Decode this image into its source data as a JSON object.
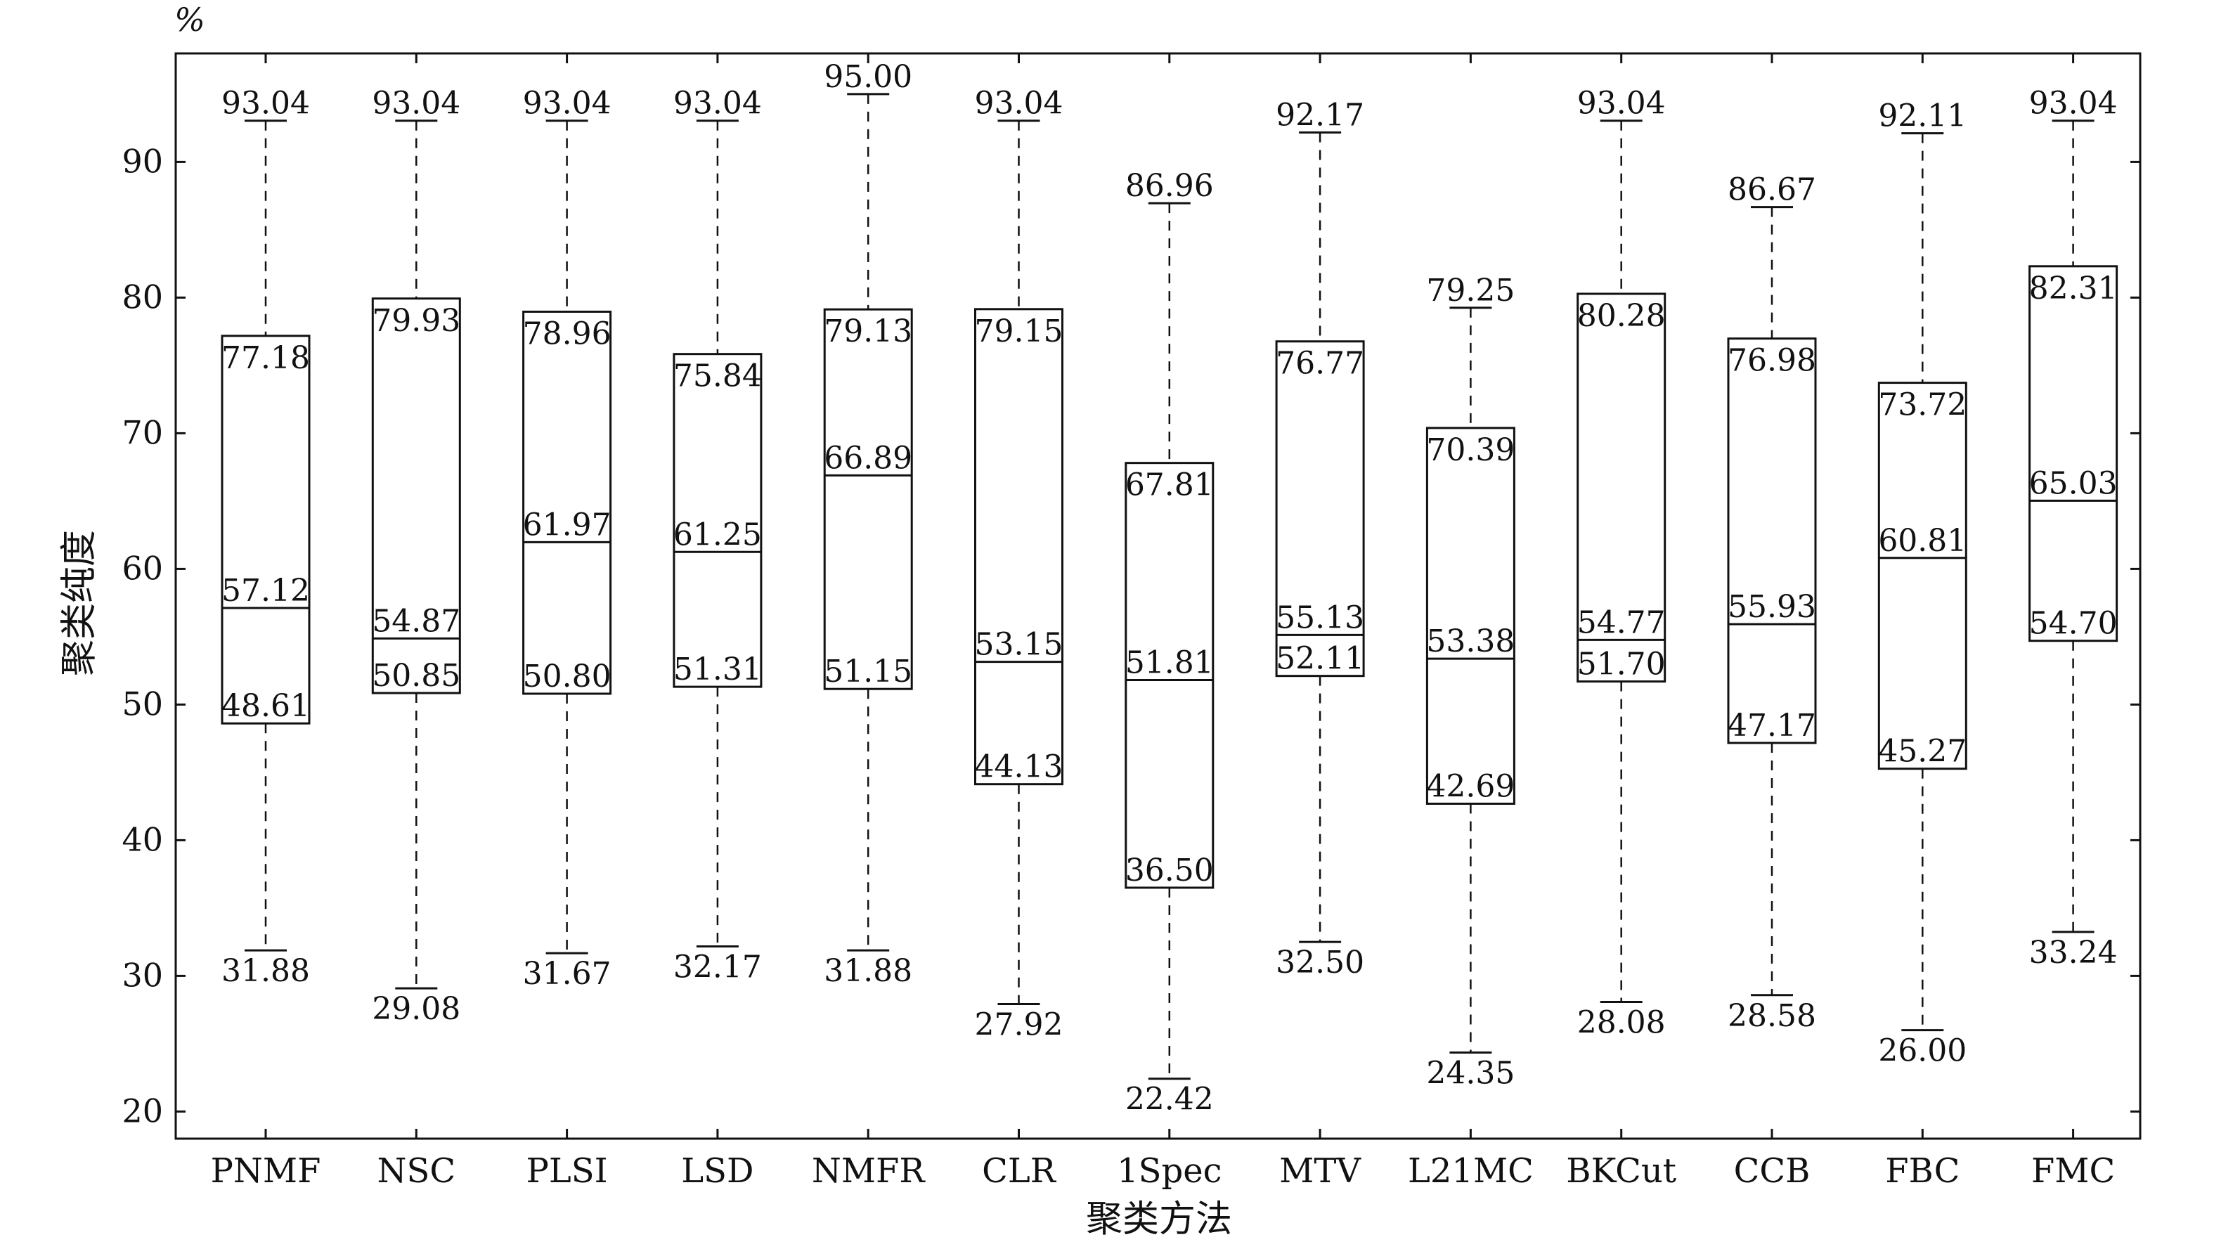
{
  "chart_data": {
    "type": "box",
    "xlabel": "聚类方法",
    "ylabel": "聚类纯度",
    "yunit": "%",
    "ylim": [
      18,
      98
    ],
    "yticks": [
      20,
      30,
      40,
      50,
      60,
      70,
      80,
      90
    ],
    "grid": false,
    "categories": [
      "PNMF",
      "NSC",
      "PLSI",
      "LSD",
      "NMFR",
      "CLR",
      "1Spec",
      "MTV",
      "L21MC",
      "BKCut",
      "CCB",
      "FBC",
      "FMC"
    ],
    "boxes": [
      {
        "name": "PNMF",
        "min": 31.88,
        "q1": 48.61,
        "median": 57.12,
        "q3": 77.18,
        "max": 93.04
      },
      {
        "name": "NSC",
        "min": 29.08,
        "q1": 50.85,
        "median": 54.87,
        "q3": 79.93,
        "max": 93.04
      },
      {
        "name": "PLSI",
        "min": 31.67,
        "q1": 50.8,
        "median": 61.97,
        "q3": 78.96,
        "max": 93.04
      },
      {
        "name": "LSD",
        "min": 32.17,
        "q1": 51.31,
        "median": 61.25,
        "q3": 75.84,
        "max": 93.04
      },
      {
        "name": "NMFR",
        "min": 31.88,
        "q1": 51.15,
        "median": 66.89,
        "q3": 79.13,
        "max": 95.0
      },
      {
        "name": "CLR",
        "min": 27.92,
        "q1": 44.13,
        "median": 53.15,
        "q3": 79.15,
        "max": 93.04
      },
      {
        "name": "1Spec",
        "min": 22.42,
        "q1": 36.5,
        "median": 51.81,
        "q3": 67.81,
        "max": 86.96
      },
      {
        "name": "MTV",
        "min": 32.5,
        "q1": 52.11,
        "median": 55.13,
        "q3": 76.77,
        "max": 92.17
      },
      {
        "name": "L21MC",
        "min": 24.35,
        "q1": 42.69,
        "median": 53.38,
        "q3": 70.39,
        "max": 79.25
      },
      {
        "name": "BKCut",
        "min": 28.08,
        "q1": 51.7,
        "median": 54.77,
        "q3": 80.28,
        "max": 93.04
      },
      {
        "name": "CCB",
        "min": 28.58,
        "q1": 47.17,
        "median": 55.93,
        "q3": 76.98,
        "max": 86.67
      },
      {
        "name": "FBC",
        "min": 26.0,
        "q1": 45.27,
        "median": 60.81,
        "q3": 73.72,
        "max": 92.11
      },
      {
        "name": "FMC",
        "min": 33.24,
        "q1": 54.7,
        "median": 65.03,
        "q3": 82.31,
        "max": 93.04
      }
    ],
    "value_labels": {
      "PNMF": {
        "min": "31.88",
        "q1": "48.61",
        "median": "57.12",
        "q3": "77.18",
        "max": "93.04"
      },
      "NSC": {
        "min": "29.08",
        "q1": "50.85",
        "median": "54.87",
        "q3": "79.93",
        "max": "93.04"
      },
      "PLSI": {
        "min": "31.67",
        "q1": "50.80",
        "median": "61.97",
        "q3": "78.96",
        "max": "93.04"
      },
      "LSD": {
        "min": "32.17",
        "q1": "51.31",
        "median": "61.25",
        "q3": "75.84",
        "max": "93.04"
      },
      "NMFR": {
        "min": "31.88",
        "q1": "51.15",
        "median": "66.89",
        "q3": "79.13",
        "max": "95.00"
      },
      "CLR": {
        "min": "27.92",
        "q1": "44.13",
        "median": "53.15",
        "q3": "79.15",
        "max": "93.04"
      },
      "1Spec": {
        "min": "22.42",
        "q1": "36.50",
        "median": "51.81",
        "q3": "67.81",
        "max": "86.96"
      },
      "MTV": {
        "min": "32.50",
        "q1": "52.11",
        "median": "55.13",
        "q3": "76.77",
        "max": "92.17"
      },
      "L21MC": {
        "min": "24.35",
        "q1": "42.69",
        "median": "53.38",
        "q3": "70.39",
        "max": "79.25"
      },
      "BKCut": {
        "min": "28.08",
        "q1": "51.70",
        "median": "54.77",
        "q3": "80.28",
        "max": "93.04"
      },
      "CCB": {
        "min": "28.58",
        "q1": "47.17",
        "median": "55.93",
        "q3": "76.98",
        "max": "86.67"
      },
      "FBC": {
        "min": "26.00",
        "q1": "45.27",
        "median": "60.81",
        "q3": "73.72",
        "max": "92.11"
      },
      "FMC": {
        "min": "33.24",
        "q1": "54.70",
        "median": "65.03",
        "q3": "82.31",
        "max": "93.04"
      }
    }
  }
}
